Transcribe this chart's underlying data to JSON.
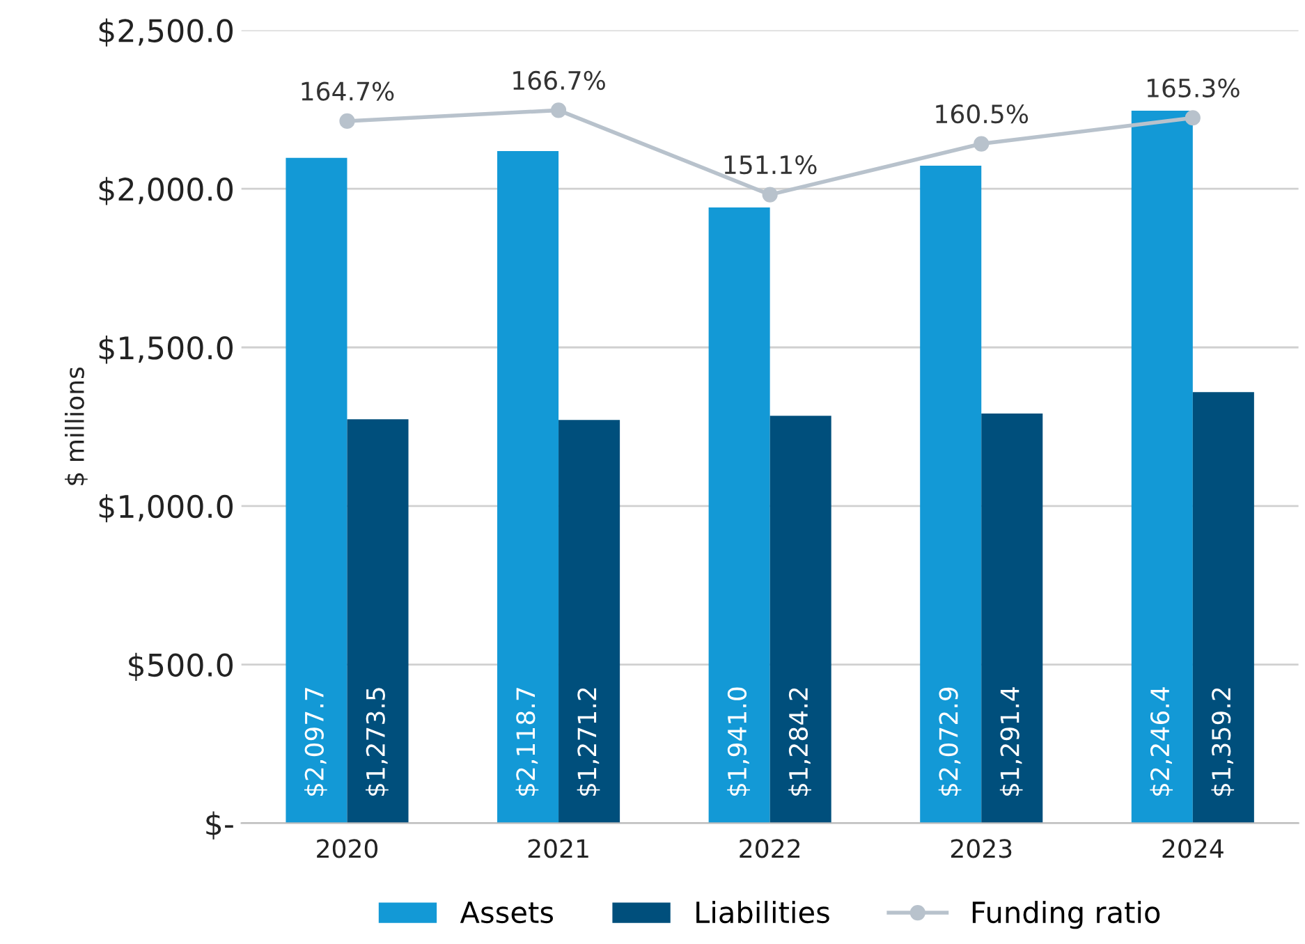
{
  "chart_data": {
    "type": "bar",
    "ylabel": "$ millions",
    "categories": [
      "2020",
      "2021",
      "2022",
      "2023",
      "2024"
    ],
    "series": [
      {
        "name": "Assets",
        "color": "#1399d6",
        "values": [
          2097.7,
          2118.7,
          1941.0,
          2072.9,
          2246.4
        ],
        "value_labels": [
          "$2,097.7",
          "$2,118.7",
          "$1,941.0",
          "$2,072.9",
          "$2,246.4"
        ]
      },
      {
        "name": "Liabilities",
        "color": "#004f7c",
        "values": [
          1273.5,
          1271.2,
          1284.2,
          1291.4,
          1359.2
        ],
        "value_labels": [
          "$1,273.5",
          "$1,271.2",
          "$1,284.2",
          "$1,291.4",
          "$1,359.2"
        ]
      },
      {
        "name": "Funding ratio",
        "type": "line",
        "axis": "y2",
        "color": "#b8c2cc",
        "marker": "circle",
        "values": [
          164.7,
          166.7,
          151.1,
          160.5,
          165.3
        ],
        "value_labels": [
          "164.7%",
          "166.7%",
          "151.1%",
          "160.5%",
          "165.3%"
        ]
      }
    ],
    "ylim": [
      0,
      2500
    ],
    "yticks": [
      {
        "value": 0,
        "label": "$-"
      },
      {
        "value": 500,
        "label": "$500.0"
      },
      {
        "value": 1000,
        "label": "$1,000.0"
      },
      {
        "value": 1500,
        "label": "$1,500.0"
      },
      {
        "value": 2000,
        "label": "$2,000.0"
      },
      {
        "value": 2500,
        "label": "$2,500.0"
      }
    ],
    "y2lim": [
      34.9,
      181.5
    ],
    "tick_labels": "xy",
    "grid": "y",
    "legend": "bottom"
  }
}
